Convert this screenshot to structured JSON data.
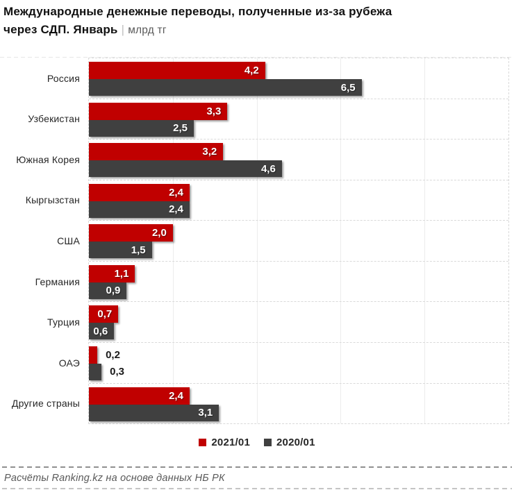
{
  "header": {
    "title_line1": "Международные денежные переводы, полученные из-за рубежа",
    "title_line2_bold": "через СДП. Январь",
    "title_separator": "|",
    "title_unit": "млрд тг"
  },
  "chart_data": {
    "type": "bar",
    "orientation": "horizontal",
    "title": "Международные денежные переводы, полученные из-за рубежа через СДП. Январь",
    "unit": "млрд тг",
    "categories": [
      "Россия",
      "Узбекистан",
      "Южная Корея",
      "Кыргызстан",
      "США",
      "Германия",
      "Турция",
      "ОАЭ",
      "Другие страны"
    ],
    "series": [
      {
        "name": "2021/01",
        "color": "#c00000",
        "values": [
          4.2,
          3.3,
          3.2,
          2.4,
          2.0,
          1.1,
          0.7,
          0.2,
          2.4
        ],
        "labels": [
          "4,2",
          "3,3",
          "3,2",
          "2,4",
          "2,0",
          "1,1",
          "0,7",
          "0,2",
          "2,4"
        ]
      },
      {
        "name": "2020/01",
        "color": "#404040",
        "values": [
          6.5,
          2.5,
          4.6,
          2.4,
          1.5,
          0.9,
          0.6,
          0.3,
          3.1
        ],
        "labels": [
          "6,5",
          "2,5",
          "4,6",
          "2,4",
          "1,5",
          "0,9",
          "0,6",
          "0,3",
          "3,1"
        ]
      }
    ],
    "xlim": [
      0,
      10
    ],
    "gridline_values": [
      2,
      4,
      6,
      8
    ],
    "grid": true,
    "legend_position": "bottom",
    "value_label_color_inside": "#ffffff",
    "value_label_color_outside": "#1a1a1a"
  },
  "footer": {
    "source": "Расчёты Ranking.kz на основе данных НБ РК"
  }
}
